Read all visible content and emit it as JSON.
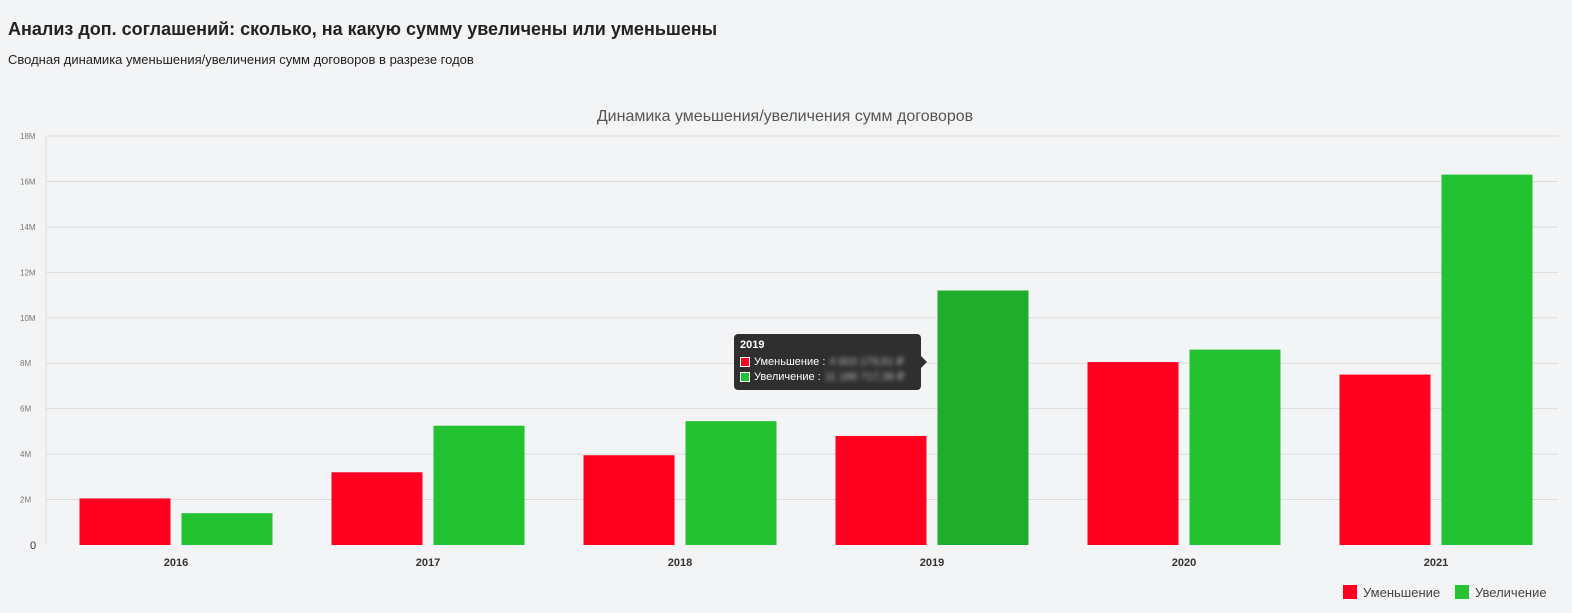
{
  "header": {
    "title": "Анализ доп. соглашений: сколько, на какую сумму увеличены или уменьшены",
    "subtitle": "Сводная динамика уменьшения/увеличения сумм договоров в разрезе годов"
  },
  "colors": {
    "decrease": "#ff0020",
    "increase": "#22c232",
    "increase_hover": "#20ad2c"
  },
  "chart_data": {
    "type": "bar",
    "title": "Динамика умеьшения/увеличения сумм договоров",
    "categories": [
      "2016",
      "2017",
      "2018",
      "2019",
      "2020",
      "2021"
    ],
    "series": [
      {
        "name": "Уменьшение",
        "values": [
          2.05,
          3.2,
          3.95,
          4.8,
          8.05,
          7.5
        ]
      },
      {
        "name": "Увеличение",
        "values": [
          1.4,
          5.25,
          5.45,
          11.2,
          8.6,
          16.3
        ]
      }
    ],
    "ylim": [
      0,
      18
    ],
    "y_unit": "млн",
    "y_ticks": [
      "0",
      "2M",
      "4M",
      "6M",
      "8M",
      "10M",
      "12M",
      "14M",
      "16M",
      "18M"
    ],
    "grid": true,
    "legend_position": "bottom-right"
  },
  "tooltip": {
    "title": "2019",
    "rows": [
      {
        "label": "Уменьшение :",
        "value": "4 803 179,61 ₽"
      },
      {
        "label": "Увеличение :",
        "value": "11 186 717,38 ₽"
      }
    ]
  }
}
